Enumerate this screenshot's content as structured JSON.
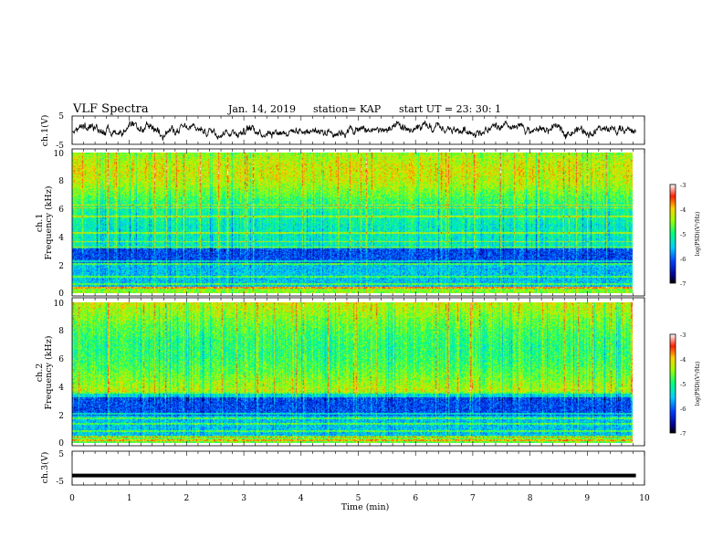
{
  "header": {
    "title": "VLF Spectra",
    "date": "Jan. 14, 2019",
    "station": "station= KAP",
    "start": "start  UT =  23: 30: 1"
  },
  "chart_data": [
    {
      "type": "line",
      "ylabel": "ch.1(V)",
      "ylim": [
        -5,
        5
      ],
      "yticks": [
        "5",
        "-5"
      ],
      "xlim": [
        0,
        10
      ],
      "series": [
        {
          "baseline": 0,
          "amplitude": 2.5
        }
      ]
    },
    {
      "type": "heatmap",
      "panel_label": "ch.1",
      "ylabel": "Frequency (kHz)",
      "ylim": [
        0,
        10
      ],
      "yticks": [
        "0",
        "2",
        "4",
        "6",
        "8",
        "10"
      ],
      "xlim": [
        0,
        9.85
      ],
      "colorbar": {
        "label": "log(PSD)(V²/Hz)",
        "range": [
          -7,
          -3
        ],
        "ticks": [
          "-3",
          "-4",
          "-5",
          "-6",
          "-7"
        ]
      }
    },
    {
      "type": "heatmap",
      "panel_label": "ch.2",
      "ylabel": "Frequency (kHz)",
      "ylim": [
        0,
        10
      ],
      "yticks": [
        "0",
        "2",
        "4",
        "6",
        "8",
        "10"
      ],
      "xlim": [
        0,
        9.85
      ],
      "colorbar": {
        "label": "log(PSD)(V²/Hz)",
        "range": [
          -7,
          -3
        ],
        "ticks": [
          "-3",
          "-4",
          "-5",
          "-6",
          "-7"
        ]
      }
    },
    {
      "type": "line",
      "ylabel": "ch.3(V)",
      "ylim": [
        -5,
        5
      ],
      "yticks": [
        "5",
        "-5"
      ],
      "xlim": [
        0,
        10
      ],
      "series": [
        {
          "value": -2.2
        }
      ]
    }
  ],
  "xaxis": {
    "label": "Time (min)",
    "ticks": [
      "0",
      "1",
      "2",
      "3",
      "4",
      "5",
      "6",
      "7",
      "8",
      "9",
      "10"
    ]
  }
}
